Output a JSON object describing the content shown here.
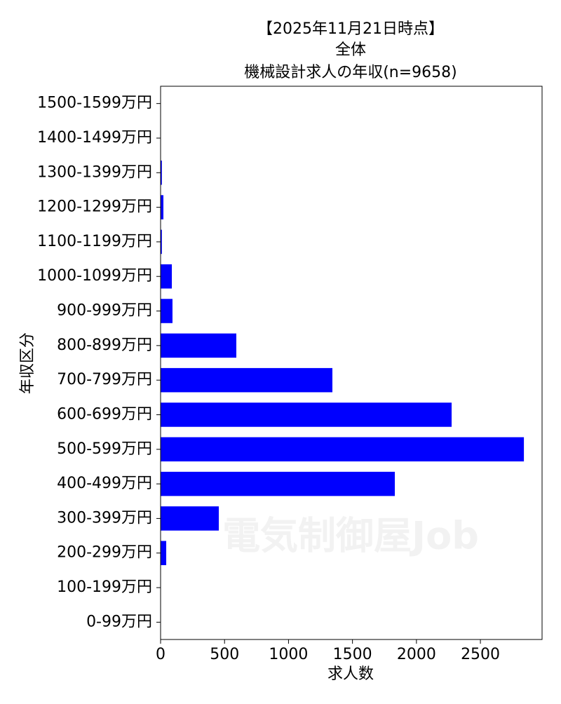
{
  "chart_data": {
    "type": "barh",
    "title": [
      "【2025年11月21日時点】",
      "全体",
      "機械設計求人の年収(n=9658)"
    ],
    "xlabel": "求人数",
    "ylabel": "年収区分",
    "watermark": "電気制御屋Job",
    "categories": [
      "0-99万円",
      "100-199万円",
      "200-299万円",
      "300-399万円",
      "400-499万円",
      "500-599万円",
      "600-699万円",
      "700-799万円",
      "800-899万円",
      "900-999万円",
      "1000-1099万円",
      "1100-1199万円",
      "1200-1299万円",
      "1300-1399万円",
      "1400-1499万円",
      "1500-1599万円"
    ],
    "values": [
      0,
      0,
      44,
      455,
      1831,
      2840,
      2275,
      1343,
      592,
      93,
      88,
      10,
      22,
      10,
      0,
      0
    ],
    "color": "#0000ff",
    "xlim": [
      0,
      2982
    ],
    "xticks": [
      0,
      500,
      1000,
      1500,
      2000,
      2500
    ],
    "grid": false
  }
}
